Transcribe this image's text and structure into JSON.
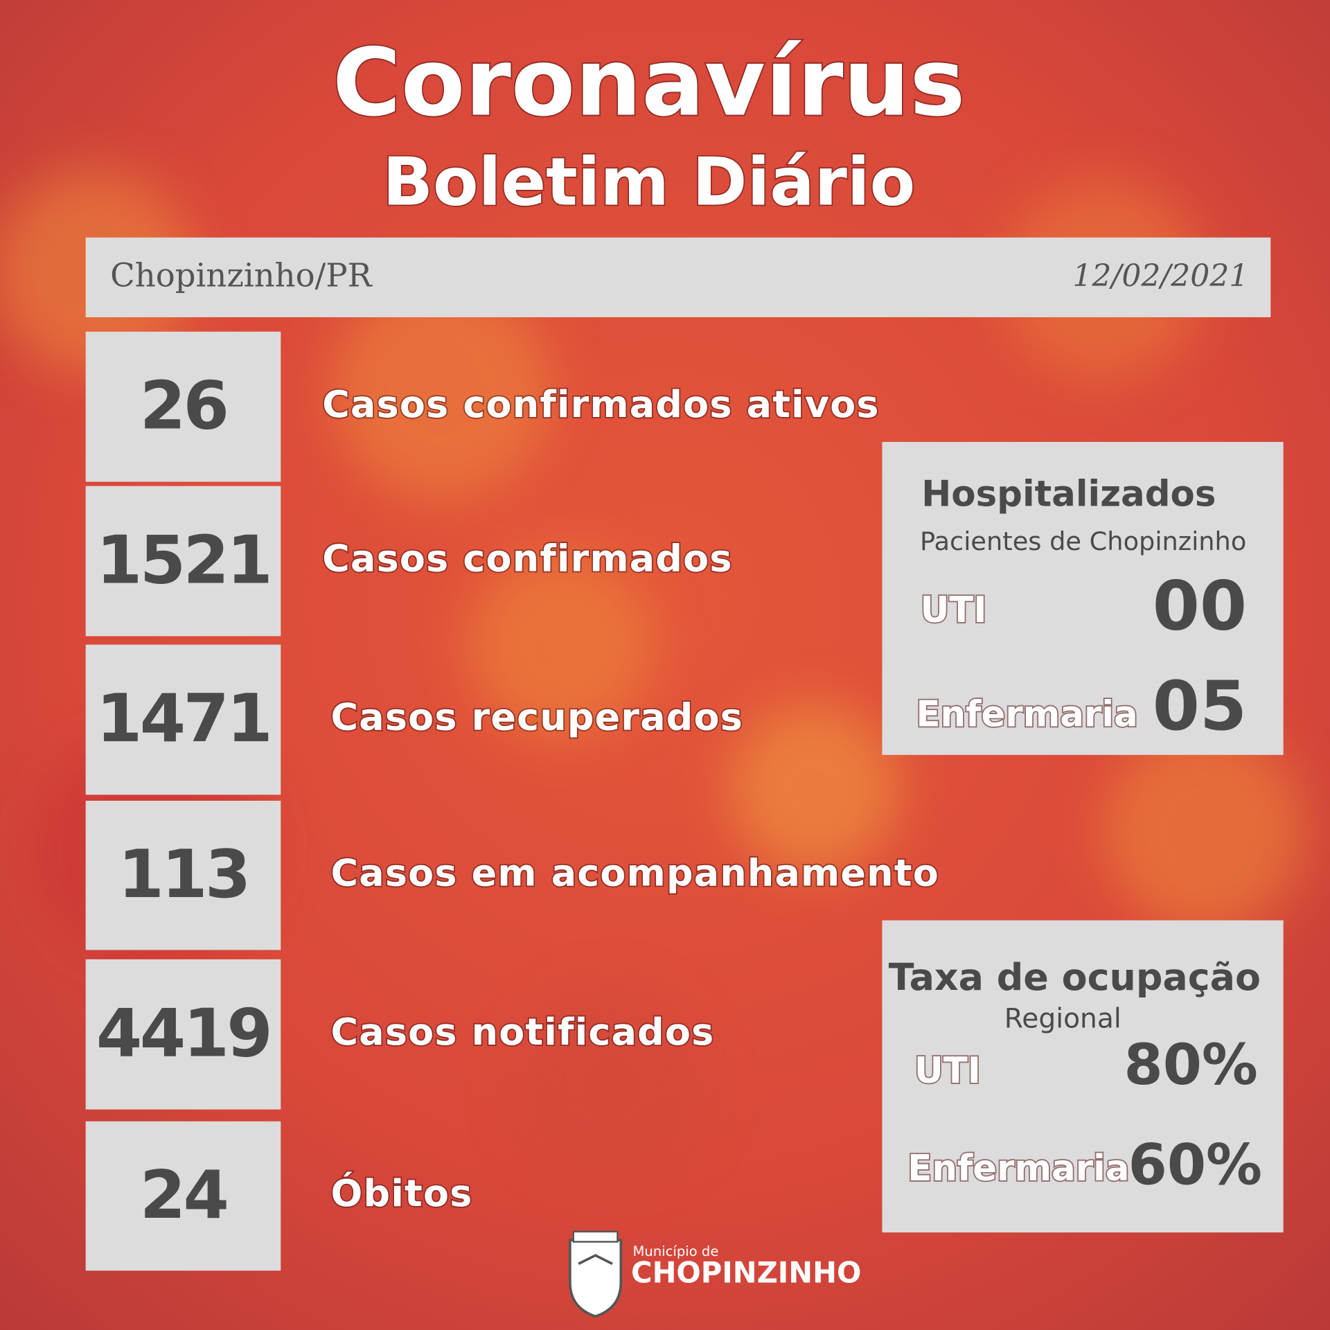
{
  "header": {
    "title": "Coronavírus",
    "subtitle": "Boletim Diário"
  },
  "info_bar": {
    "location": "Chopinzinho/PR",
    "date": "12/02/2021"
  },
  "stats": [
    {
      "value": "26",
      "label": "Casos confirmados ativos"
    },
    {
      "value": "1521",
      "label": "Casos confirmados"
    },
    {
      "value": "1471",
      "label": "Casos recuperados"
    },
    {
      "value": "113",
      "label": "Casos em acompanhamento"
    },
    {
      "value": "4419",
      "label": "Casos notificados"
    },
    {
      "value": "24",
      "label": "Óbitos"
    }
  ],
  "hospitalized": {
    "title": "Hospitalizados",
    "subtitle": "Pacientes de Chopinzinho",
    "rows": [
      {
        "label": "UTI",
        "value": "00"
      },
      {
        "label": "Enfermaria",
        "value": "05"
      }
    ]
  },
  "occupancy": {
    "title": "Taxa de ocupação",
    "subtitle": "Regional",
    "rows": [
      {
        "label": "UTI",
        "value": "80%"
      },
      {
        "label": "Enfermaria",
        "value": "60%"
      }
    ]
  },
  "footer": {
    "prefix": "Município de",
    "name": "CHOPINZINHO"
  }
}
